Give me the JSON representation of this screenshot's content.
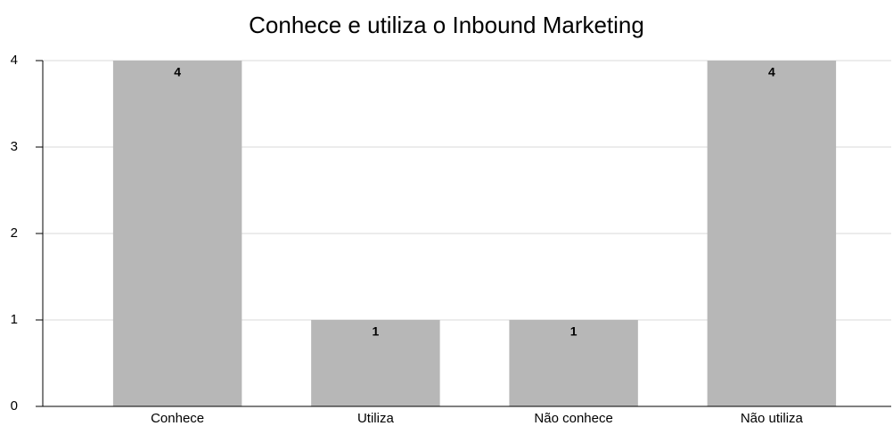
{
  "chart_data": {
    "type": "bar",
    "title": "Conhece e utiliza o Inbound Marketing",
    "categories": [
      "Conhece",
      "Utiliza",
      "Não conhece",
      "Não utiliza"
    ],
    "values": [
      4,
      1,
      1,
      4
    ],
    "color": "#b7b7b7",
    "ylim": [
      0,
      4
    ],
    "yticks": [
      0,
      1,
      2,
      3,
      4
    ],
    "grid": true
  }
}
